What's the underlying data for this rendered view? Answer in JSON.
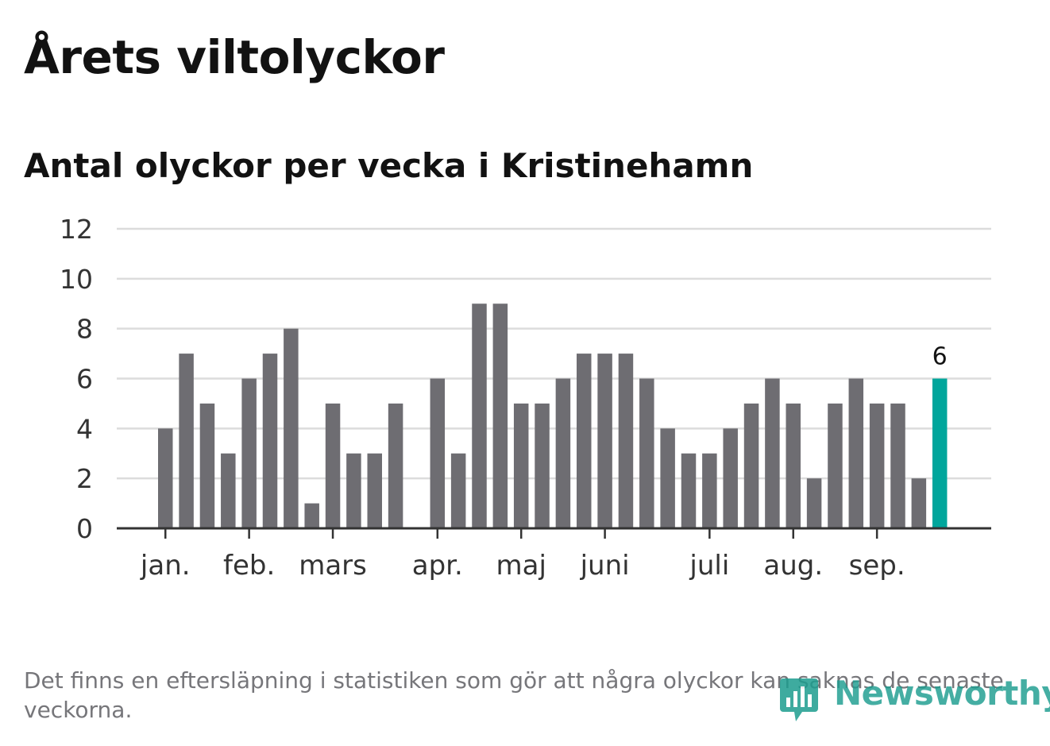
{
  "header": {
    "title": "Årets viltolyckor",
    "subtitle": "Antal olyckor per vecka i Kristinehamn"
  },
  "footer": {
    "note": "Det finns en eftersläpning i statistiken som gör att några olyckor kan saknas de senaste veckorna.",
    "brand": "Newsworthy",
    "brand_icon": "bar-chart-speech-bubble-icon"
  },
  "colors": {
    "bar": "#6e6d72",
    "highlight": "#00a69c",
    "grid": "#dcdcdc",
    "axis": "#333333",
    "text": "#121212",
    "footnote": "#76767a",
    "brand": "#1d9d8f"
  },
  "chart_data": {
    "type": "bar",
    "title": "Antal olyckor per vecka i Kristinehamn",
    "ylim": [
      0,
      12
    ],
    "yticks": [
      0,
      2,
      4,
      6,
      8,
      10,
      12
    ],
    "grid": true,
    "values": [
      4,
      7,
      5,
      3,
      6,
      7,
      8,
      1,
      5,
      3,
      3,
      5,
      0,
      6,
      3,
      9,
      9,
      5,
      5,
      6,
      7,
      7,
      7,
      6,
      4,
      3,
      3,
      4,
      5,
      6,
      5,
      2,
      5,
      6,
      5,
      5,
      2,
      6
    ],
    "highlight_index": 37,
    "highlight_label": "6",
    "month_labels": [
      {
        "label": "jan.",
        "week_index": 0
      },
      {
        "label": "feb.",
        "week_index": 4
      },
      {
        "label": "mars",
        "week_index": 8
      },
      {
        "label": "apr.",
        "week_index": 13
      },
      {
        "label": "maj",
        "week_index": 17
      },
      {
        "label": "juni",
        "week_index": 21
      },
      {
        "label": "juli",
        "week_index": 26
      },
      {
        "label": "aug.",
        "week_index": 30
      },
      {
        "label": "sep.",
        "week_index": 34
      }
    ]
  }
}
